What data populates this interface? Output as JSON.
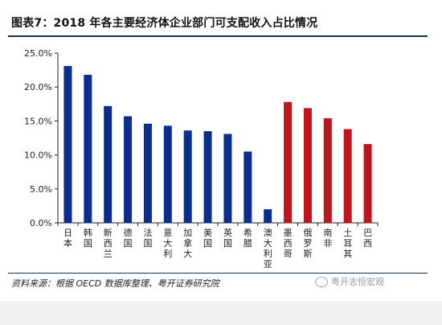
{
  "title": "图表7：2018 年各主要经济体企业部门可支配收入占比情况",
  "source": "资料来源：根据 OECD 数据库整理、粤开证券研究院",
  "watermark": "粤开志恒宏观",
  "colors": {
    "blue": "#0a2d8f",
    "red": "#c0141c",
    "axis": "#222222"
  },
  "chart_data": {
    "type": "bar",
    "categories": [
      "日本",
      "韩国",
      "新西兰",
      "德国",
      "法国",
      "意大利",
      "加拿大",
      "美国",
      "英国",
      "希腊",
      "澳大利亚",
      "墨西哥",
      "俄罗斯",
      "南非",
      "土耳其",
      "巴西"
    ],
    "values": [
      23.1,
      21.8,
      17.2,
      15.7,
      14.6,
      14.3,
      13.6,
      13.5,
      13.1,
      10.5,
      2.0,
      17.8,
      16.9,
      15.4,
      13.8,
      11.6
    ],
    "series_colors": [
      "blue",
      "blue",
      "blue",
      "blue",
      "blue",
      "blue",
      "blue",
      "blue",
      "blue",
      "blue",
      "blue",
      "red",
      "red",
      "red",
      "red",
      "red"
    ],
    "ylim": [
      0,
      25
    ],
    "yticks": [
      "0.0%",
      "5.0%",
      "10.0%",
      "15.0%",
      "20.0%",
      "25.0%"
    ],
    "ytick_values": [
      0,
      5,
      10,
      15,
      20,
      25
    ],
    "title": "",
    "xlabel": "",
    "ylabel": ""
  }
}
